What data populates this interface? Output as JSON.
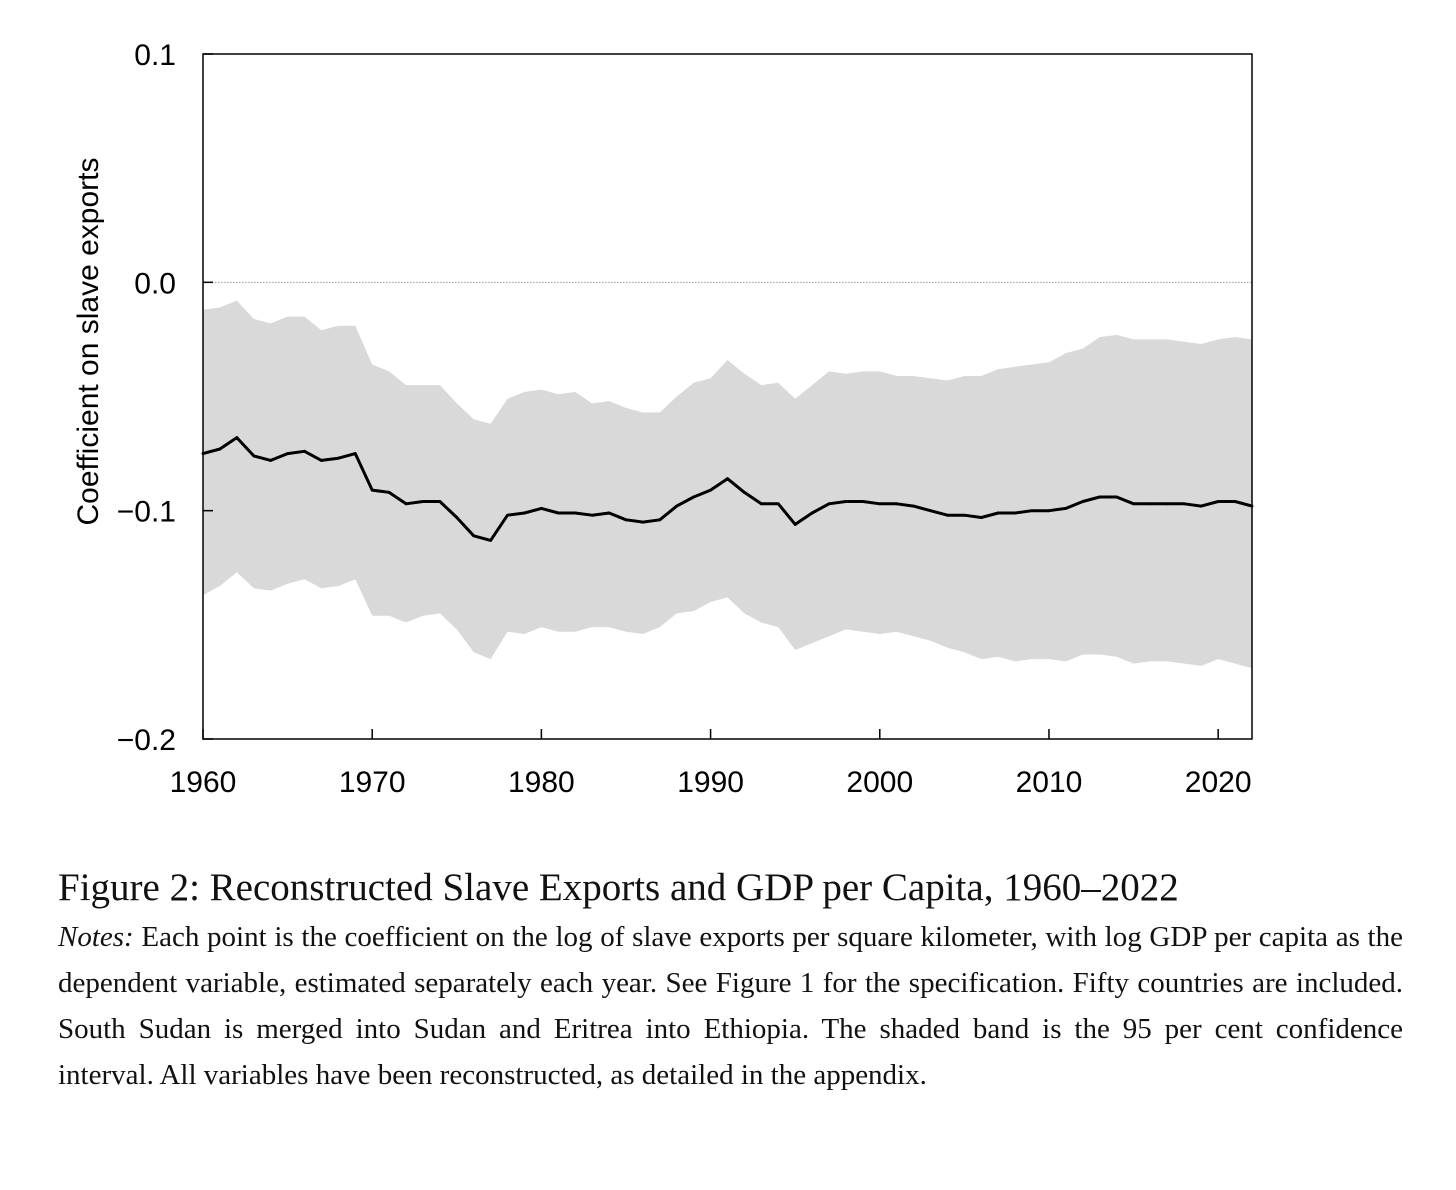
{
  "chart_data": {
    "type": "line",
    "ylabel": "Coefficient on slave exports",
    "xlabel": "",
    "xlim": [
      1960,
      2022
    ],
    "ylim": [
      -0.2,
      0.1
    ],
    "x_ticks": [
      1960,
      1970,
      1980,
      1990,
      2000,
      2010,
      2020
    ],
    "x_tick_labels": [
      "1960",
      "1970",
      "1980",
      "1990",
      "2000",
      "2010",
      "2020"
    ],
    "y_ticks": [
      0.1,
      0.0,
      -0.1,
      -0.2
    ],
    "y_tick_labels": [
      "0.1",
      "0.0",
      "−0.1",
      "−0.2"
    ],
    "reference_line": 0.0,
    "grid": false,
    "legend": "none",
    "colors": {
      "line": "#000000",
      "band": "#d9d9d9",
      "reference": "#999999"
    },
    "x": [
      1960,
      1961,
      1962,
      1963,
      1964,
      1965,
      1966,
      1967,
      1968,
      1969,
      1970,
      1971,
      1972,
      1973,
      1974,
      1975,
      1976,
      1977,
      1978,
      1979,
      1980,
      1981,
      1982,
      1983,
      1984,
      1985,
      1986,
      1987,
      1988,
      1989,
      1990,
      1991,
      1992,
      1993,
      1994,
      1995,
      1996,
      1997,
      1998,
      1999,
      2000,
      2001,
      2002,
      2003,
      2004,
      2005,
      2006,
      2007,
      2008,
      2009,
      2010,
      2011,
      2012,
      2013,
      2014,
      2015,
      2016,
      2017,
      2018,
      2019,
      2020,
      2021,
      2022
    ],
    "series": [
      {
        "values": [
          -0.075,
          -0.073,
          -0.068,
          -0.076,
          -0.078,
          -0.075,
          -0.074,
          -0.078,
          -0.077,
          -0.075,
          -0.091,
          -0.092,
          -0.097,
          -0.096,
          -0.096,
          -0.103,
          -0.111,
          -0.113,
          -0.102,
          -0.101,
          -0.099,
          -0.101,
          -0.101,
          -0.102,
          -0.101,
          -0.104,
          -0.105,
          -0.104,
          -0.098,
          -0.094,
          -0.091,
          -0.086,
          -0.092,
          -0.097,
          -0.097,
          -0.106,
          -0.101,
          -0.097,
          -0.096,
          -0.096,
          -0.097,
          -0.097,
          -0.098,
          -0.1,
          -0.102,
          -0.102,
          -0.103,
          -0.101,
          -0.101,
          -0.1,
          -0.1,
          -0.099,
          -0.096,
          -0.094,
          -0.094,
          -0.097,
          -0.097,
          -0.097,
          -0.097,
          -0.098,
          -0.096,
          -0.096,
          -0.098
        ]
      }
    ],
    "ci_lower": [
      -0.137,
      -0.133,
      -0.127,
      -0.134,
      -0.135,
      -0.132,
      -0.13,
      -0.134,
      -0.133,
      -0.13,
      -0.146,
      -0.146,
      -0.149,
      -0.146,
      -0.145,
      -0.152,
      -0.162,
      -0.165,
      -0.153,
      -0.154,
      -0.151,
      -0.153,
      -0.153,
      -0.151,
      -0.151,
      -0.153,
      -0.154,
      -0.151,
      -0.145,
      -0.144,
      -0.14,
      -0.138,
      -0.145,
      -0.149,
      -0.151,
      -0.161,
      -0.158,
      -0.155,
      -0.152,
      -0.153,
      -0.154,
      -0.153,
      -0.155,
      -0.157,
      -0.16,
      -0.162,
      -0.165,
      -0.164,
      -0.166,
      -0.165,
      -0.165,
      -0.166,
      -0.163,
      -0.163,
      -0.164,
      -0.167,
      -0.166,
      -0.166,
      -0.167,
      -0.168,
      -0.165,
      -0.167,
      -0.169
    ],
    "ci_upper": [
      -0.012,
      -0.011,
      -0.008,
      -0.016,
      -0.018,
      -0.015,
      -0.015,
      -0.021,
      -0.019,
      -0.019,
      -0.036,
      -0.039,
      -0.045,
      -0.045,
      -0.045,
      -0.053,
      -0.06,
      -0.062,
      -0.051,
      -0.048,
      -0.047,
      -0.049,
      -0.048,
      -0.053,
      -0.052,
      -0.055,
      -0.057,
      -0.057,
      -0.05,
      -0.044,
      -0.042,
      -0.034,
      -0.04,
      -0.045,
      -0.044,
      -0.051,
      -0.045,
      -0.039,
      -0.04,
      -0.039,
      -0.039,
      -0.041,
      -0.041,
      -0.042,
      -0.043,
      -0.041,
      -0.041,
      -0.038,
      -0.037,
      -0.036,
      -0.035,
      -0.031,
      -0.029,
      -0.024,
      -0.023,
      -0.025,
      -0.025,
      -0.025,
      -0.026,
      -0.027,
      -0.025,
      -0.024,
      -0.025
    ]
  },
  "caption": {
    "title": "Figure 2: Reconstructed Slave Exports and GDP per Capita, 1960–2022",
    "notes_label": "Notes:",
    "notes_text": " Each point is the coefficient on the log of slave exports per square kilometer, with log GDP per capita as the dependent variable, estimated separately each year.  See Figure 1 for the specification.  Fifty countries are included.  South Sudan is merged into Sudan and Eritrea into Ethiopia.  The shaded band is the 95 per cent confidence interval.  All variables have been reconstructed, as detailed in the appendix."
  }
}
